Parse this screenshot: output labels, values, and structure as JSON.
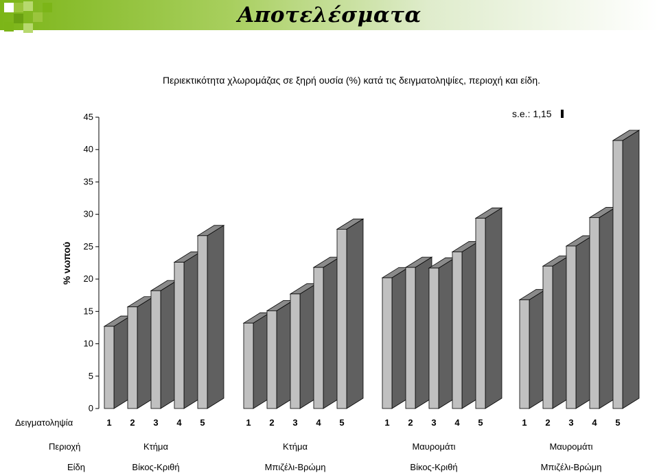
{
  "slide": {
    "title": "Αποτελέσματα"
  },
  "chart_data": {
    "type": "bar",
    "title": "Περιεκτικότητα χλωρομάζας σε ξηρή ουσία (%) κατά τις δειγματοληψίες, περιοχή και είδη.",
    "ylabel": "% νωπού",
    "ylim": [
      0,
      45
    ],
    "yticks": [
      0,
      5,
      10,
      15,
      20,
      25,
      30,
      35,
      40,
      45
    ],
    "se_label": "s.e.: 1,15",
    "row_labels": {
      "sampling": "Δειγματοληψία",
      "region": "Περιοχή",
      "species": "Είδη"
    },
    "groups": [
      {
        "region": "Κτήμα",
        "species": "Βίκος-Κριθή",
        "categories": [
          "1",
          "2",
          "3",
          "4",
          "5"
        ],
        "values": [
          12.7,
          15.7,
          18.2,
          22.6,
          26.7
        ]
      },
      {
        "region": "Κτήμα",
        "species": "Μπιζέλι-Βρώμη",
        "categories": [
          "1",
          "2",
          "3",
          "4",
          "5"
        ],
        "values": [
          13.2,
          15.1,
          17.7,
          21.8,
          27.7
        ]
      },
      {
        "region": "Μαυρομάτι",
        "species": "Βίκος-Κριθή",
        "categories": [
          "1",
          "2",
          "3",
          "4",
          "5"
        ],
        "values": [
          20.2,
          21.8,
          21.7,
          24.2,
          29.4
        ]
      },
      {
        "region": "Μαυρομάτι",
        "species": "Μπιζέλι-Βρώμη",
        "categories": [
          "1",
          "2",
          "3",
          "4",
          "5"
        ],
        "values": [
          16.8,
          22.0,
          25.1,
          29.5,
          41.4
        ]
      }
    ],
    "colors": {
      "front": "#c0c0c0",
      "side": "#606060",
      "top": "#8a8a8a",
      "edge": "#000000"
    },
    "grid": false,
    "legend": "none"
  }
}
